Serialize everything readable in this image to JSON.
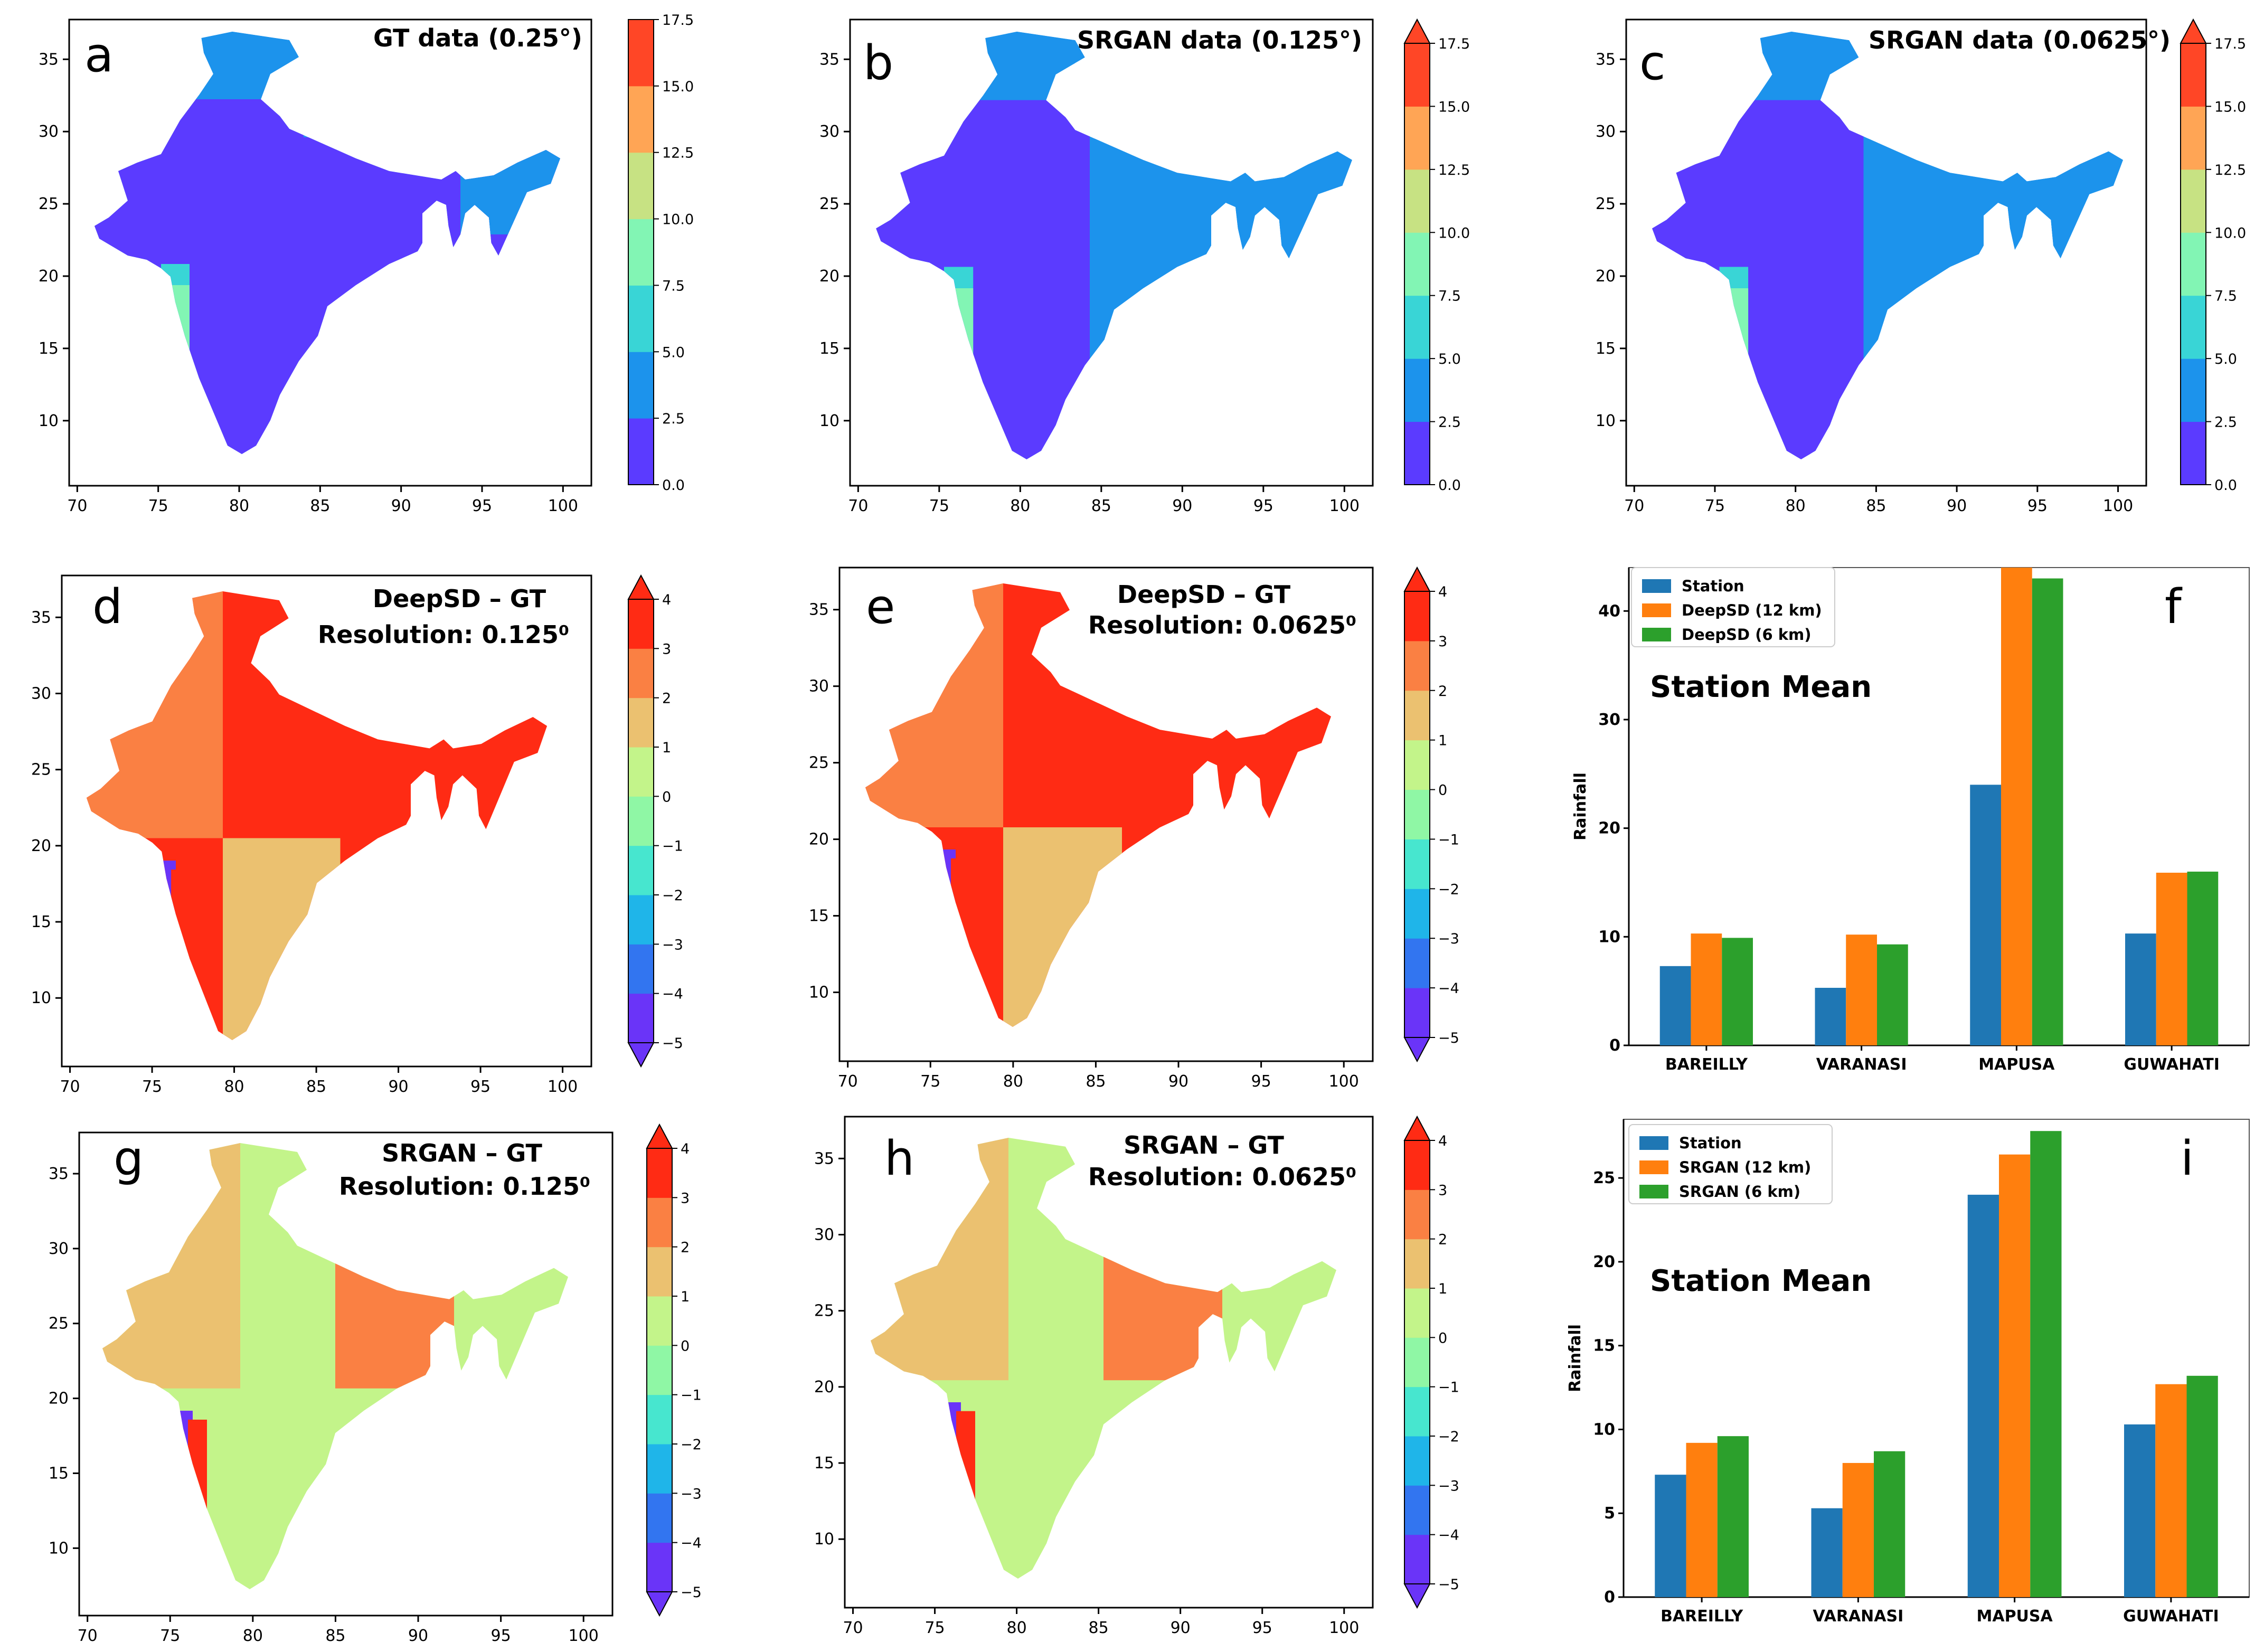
{
  "figure": {
    "colors": {
      "rainfall_levels": [
        "#5b3bff",
        "#1c93ec",
        "#39d5d6",
        "#82f5b4",
        "#c7e283",
        "#ffa555",
        "#ff4626"
      ],
      "diff_levels": [
        "#6a34f8",
        "#3275f0",
        "#1fb5e9",
        "#47e6cf",
        "#8ff7a5",
        "#c3f48a",
        "#ebc170",
        "#fa8043",
        "#ff2b14"
      ],
      "station": "#1f77b4",
      "model_12km": "#ff7f0e",
      "model_6km": "#2ca02c"
    },
    "map_axes": {
      "x_ticks": [
        "70",
        "75",
        "80",
        "85",
        "90",
        "95",
        "100"
      ],
      "y_ticks": [
        "10",
        "15",
        "20",
        "25",
        "30",
        "35"
      ]
    },
    "rain_colorbar_ticks": [
      "0.0",
      "2.5",
      "5.0",
      "7.5",
      "10.0",
      "12.5",
      "15.0",
      "17.5"
    ],
    "diff_colorbar_ticks": [
      "−5",
      "−4",
      "−3",
      "−2",
      "−1",
      "0",
      "1",
      "2",
      "3",
      "4"
    ],
    "panels": [
      {
        "id": "a",
        "letter": "a",
        "title": "GT data (0.25°)",
        "title2": ""
      },
      {
        "id": "b",
        "letter": "b",
        "title": "SRGAN data (0.125°)",
        "title2": ""
      },
      {
        "id": "c",
        "letter": "c",
        "title": "SRGAN data (0.0625°)",
        "title2": ""
      },
      {
        "id": "d",
        "letter": "d",
        "title": "DeepSD – GT",
        "title2": "Resolution: 0.125⁰"
      },
      {
        "id": "e",
        "letter": "e",
        "title": "DeepSD – GT",
        "title2": "Resolution: 0.0625⁰"
      },
      {
        "id": "g",
        "letter": "g",
        "title": "SRGAN – GT",
        "title2": "Resolution: 0.125⁰"
      },
      {
        "id": "h",
        "letter": "h",
        "title": "SRGAN – GT",
        "title2": "Resolution: 0.0625⁰"
      }
    ]
  },
  "chart_data": [
    {
      "type": "bar",
      "panel": "f",
      "letter": "f",
      "title": "Station Mean",
      "ylabel": "Rainfall",
      "categories": [
        "BAREILLY",
        "VARANASI",
        "MAPUSA",
        "GUWAHATI"
      ],
      "series": [
        {
          "name": "Station",
          "values": [
            7.3,
            5.3,
            24.0,
            10.3
          ]
        },
        {
          "name": "DeepSD (12 km)",
          "values": [
            10.3,
            10.2,
            44.0,
            15.9
          ]
        },
        {
          "name": "DeepSD (6 km)",
          "values": [
            9.9,
            9.3,
            43.0,
            16.0
          ]
        }
      ],
      "ylim": [
        0,
        44
      ],
      "yticks": [
        0,
        10,
        20,
        30,
        40
      ],
      "legend": "top-left"
    },
    {
      "type": "bar",
      "panel": "i",
      "letter": "i",
      "title": "Station Mean",
      "ylabel": "Rainfall",
      "categories": [
        "BAREILLY",
        "VARANASI",
        "MAPUSA",
        "GUWAHATI"
      ],
      "series": [
        {
          "name": "Station",
          "values": [
            7.3,
            5.3,
            24.0,
            10.3
          ]
        },
        {
          "name": "SRGAN (12 km)",
          "values": [
            9.2,
            8.0,
            26.4,
            12.7
          ]
        },
        {
          "name": "SRGAN (6 km)",
          "values": [
            9.6,
            8.7,
            27.8,
            13.2
          ]
        }
      ],
      "ylim": [
        0,
        28.5
      ],
      "yticks": [
        0,
        5,
        10,
        15,
        20,
        25
      ],
      "legend": "top-left"
    }
  ]
}
